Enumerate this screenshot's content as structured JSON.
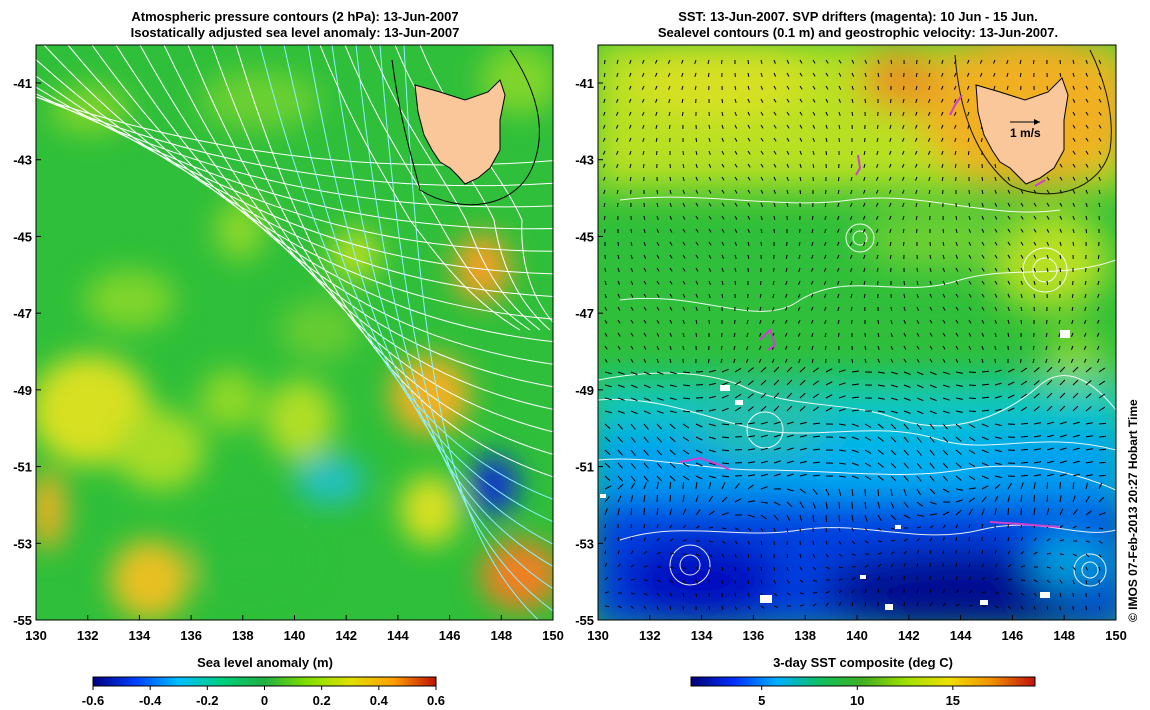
{
  "left_panel": {
    "title_line1": "Atmospheric pressure contours (2 hPa): 13-Jun-2007",
    "title_line2": "Isostatically adjusted sea level anomaly: 13-Jun-2007",
    "colorbar_label": "Sea level anomaly (m)",
    "colorbar_ticks": [
      "-0.6",
      "-0.4",
      "-0.2",
      "0",
      "0.2",
      "0.4",
      "0.6"
    ]
  },
  "right_panel": {
    "title_line1": "SST: 13-Jun-2007. SVP drifters (magenta): 10 Jun - 15 Jun.",
    "title_line2": "Sealevel contours (0.1 m) and geostrophic velocity: 13-Jun-2007.",
    "colorbar_label": "3-day SST composite (deg C)",
    "colorbar_ticks": [
      "5",
      "10",
      "15"
    ],
    "velocity_scale_label": "1 m/s"
  },
  "axes": {
    "x_ticks": [
      "130",
      "132",
      "134",
      "136",
      "138",
      "140",
      "142",
      "144",
      "146",
      "148",
      "150"
    ],
    "y_ticks": [
      "-41",
      "-43",
      "-45",
      "-47",
      "-49",
      "-51",
      "-53",
      "-55"
    ]
  },
  "credit": "© IMOS 07-Feb-2013 20:27 Hobart Time",
  "colors": {
    "land": "#f9c79a",
    "contour": "#ffffff",
    "drifter": "#d040d0",
    "cbar_sla": [
      "#000080",
      "#0040ff",
      "#00c0ff",
      "#00d080",
      "#20b040",
      "#80e000",
      "#e0e000",
      "#ffa000",
      "#c01000"
    ],
    "cbar_sst": [
      "#00007a",
      "#0030ff",
      "#00b0ff",
      "#10c060",
      "#40b020",
      "#a0e000",
      "#f0e000",
      "#f09000",
      "#c01010"
    ]
  }
}
